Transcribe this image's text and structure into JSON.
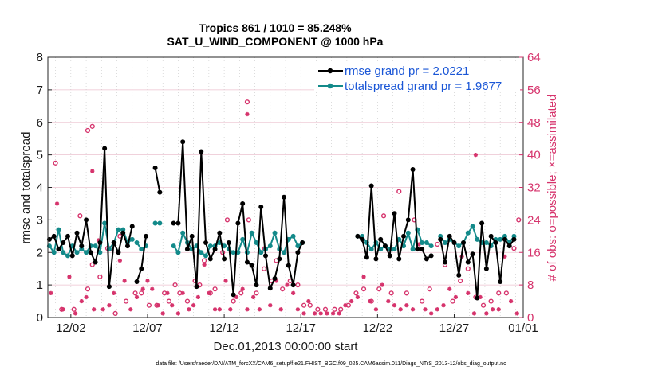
{
  "chart_data": {
    "type": "line",
    "title_line1": "Tropics 861 / 1010 = 85.248%",
    "title_line2": "SAT_U_WIND_COMPONENT @ 1000 hPa",
    "ylabel_left": "rmse and totalspread",
    "ylabel_right": "# of obs: o=possible; ×=assimilated",
    "xlabel": "Dec.01,2013 00:00:00 start",
    "footer": "data file: /Users/raeder/DAI/ATM_forcXX/CAM6_setup/f.e21.FHIST_BGC.f09_025.CAM6assim.011/Diags_NTrS_2013-12/obs_diag_output.nc",
    "xlim": [
      0.5,
      31.5
    ],
    "ylim_left": [
      0,
      8
    ],
    "ylim_right": [
      0,
      64
    ],
    "left_ticks": [
      "0",
      "1",
      "2",
      "3",
      "4",
      "5",
      "6",
      "7",
      "8"
    ],
    "right_ticks": [
      "0",
      "8",
      "16",
      "24",
      "32",
      "40",
      "48",
      "56",
      "64"
    ],
    "x_ticks": [
      {
        "day": 2,
        "label": "12/02"
      },
      {
        "day": 7,
        "label": "12/07"
      },
      {
        "day": 12,
        "label": "12/12"
      },
      {
        "day": 17,
        "label": "12/17"
      },
      {
        "day": 22,
        "label": "12/22"
      },
      {
        "day": 27,
        "label": "12/27"
      },
      {
        "day": 32,
        "label": "01/01"
      }
    ],
    "legend": [
      {
        "label": "rmse grand pr = 2.0221",
        "color": "#000000"
      },
      {
        "label": "totalspread grand pr = 1.9677",
        "color": "#138a8a"
      }
    ],
    "series": [
      {
        "name": "rmse",
        "color": "#000000",
        "x": [
          0.6,
          0.9,
          1.2,
          1.5,
          1.8,
          2.1,
          2.4,
          2.7,
          3.0,
          3.3,
          3.6,
          3.9,
          4.2,
          4.5,
          4.8,
          5.1,
          5.4,
          5.7,
          6.0,
          null,
          6.3,
          6.6,
          6.9,
          null,
          7.5,
          7.8,
          null,
          8.7,
          9.0,
          9.3,
          9.6,
          9.9,
          10.2,
          10.5,
          10.8,
          11.1,
          11.4,
          11.7,
          12.0,
          null,
          12.3,
          12.6,
          12.9,
          13.2,
          13.5,
          13.8,
          14.1,
          14.4,
          14.7,
          15.0,
          15.3,
          15.6,
          15.9,
          16.2,
          16.5,
          16.8,
          17.1,
          null,
          20.7,
          21.0,
          21.3,
          21.6,
          21.9,
          22.2,
          22.5,
          22.8,
          23.1,
          23.4,
          23.7,
          24.0,
          24.3,
          24.6,
          24.9,
          25.2,
          25.5,
          null,
          26.1,
          26.4,
          26.7,
          27.0,
          27.3,
          27.6,
          27.9,
          28.2,
          28.5,
          28.8,
          29.1,
          29.4,
          29.7,
          30.0,
          30.3,
          30.6,
          30.9
        ],
        "y": [
          2.4,
          2.5,
          2.1,
          2.3,
          2.5,
          1.9,
          2.6,
          2.2,
          3.0,
          2.0,
          1.7,
          2.3,
          5.2,
          0.95,
          2.3,
          2.0,
          2.6,
          2.2,
          2.8,
          null,
          1.1,
          1.5,
          2.5,
          null,
          4.6,
          3.85,
          null,
          2.9,
          2.9,
          5.4,
          2.1,
          2.5,
          0.95,
          5.1,
          2.3,
          1.8,
          2.1,
          2.6,
          1.8,
          null,
          2.3,
          0.7,
          2.9,
          3.5,
          1.7,
          1.6,
          1.0,
          3.4,
          1.9,
          0.9,
          1.2,
          1.8,
          3.7,
          1.6,
          1.0,
          2.0,
          2.3,
          null,
          2.5,
          2.4,
          1.85,
          4.05,
          1.8,
          2.4,
          2.2,
          1.9,
          3.2,
          1.8,
          2.5,
          3.0,
          4.55,
          2.1,
          2.1,
          1.8,
          1.9,
          null,
          2.4,
          1.7,
          2.5,
          2.3,
          1.3,
          2.3,
          1.7,
          1.95,
          0.6,
          2.9,
          1.5,
          2.5,
          2.3,
          1.1,
          2.4,
          2.2,
          2.4
        ]
      },
      {
        "name": "totalspread",
        "color": "#138a8a",
        "x": [
          0.6,
          0.9,
          1.2,
          1.5,
          1.8,
          2.1,
          2.4,
          2.7,
          3.0,
          3.3,
          3.6,
          3.9,
          4.2,
          4.5,
          4.8,
          5.1,
          5.4,
          5.7,
          6.0,
          null,
          6.3,
          6.6,
          6.9,
          null,
          7.5,
          7.8,
          null,
          8.7,
          9.0,
          9.3,
          9.6,
          9.9,
          10.2,
          10.5,
          10.8,
          11.1,
          11.4,
          11.7,
          12.0,
          null,
          12.3,
          12.6,
          12.9,
          13.2,
          13.5,
          13.8,
          14.1,
          14.4,
          14.7,
          15.0,
          15.3,
          15.6,
          15.9,
          16.2,
          16.5,
          16.8,
          17.1,
          null,
          20.7,
          21.0,
          21.3,
          21.6,
          21.9,
          22.2,
          22.5,
          22.8,
          23.1,
          23.4,
          23.7,
          24.0,
          24.3,
          24.6,
          24.9,
          25.2,
          25.5,
          null,
          26.1,
          26.4,
          26.7,
          27.0,
          27.3,
          27.6,
          27.9,
          28.2,
          28.5,
          28.8,
          29.1,
          29.4,
          29.7,
          30.0,
          30.3,
          30.6,
          30.9
        ],
        "y": [
          2.2,
          2.0,
          2.7,
          2.0,
          1.9,
          2.2,
          2.0,
          2.1,
          2.0,
          2.2,
          2.2,
          2.0,
          2.9,
          2.1,
          2.3,
          2.7,
          2.7,
          2.3,
          2.4,
          null,
          2.3,
          2.1,
          2.2,
          null,
          2.9,
          2.9,
          null,
          2.2,
          2.0,
          2.6,
          2.3,
          2.1,
          2.2,
          2.0,
          1.9,
          2.2,
          2.2,
          2.3,
          2.2,
          null,
          2.1,
          2.0,
          2.0,
          2.4,
          2.0,
          2.6,
          2.3,
          2.0,
          2.1,
          2.2,
          2.6,
          2.1,
          2.0,
          2.4,
          2.5,
          2.2,
          2.3,
          null,
          2.5,
          2.5,
          2.3,
          2.1,
          2.3,
          2.1,
          2.2,
          2.1,
          2.1,
          2.4,
          2.2,
          2.6,
          2.1,
          2.7,
          2.3,
          2.3,
          2.2,
          null,
          2.5,
          2.3,
          2.4,
          2.3,
          2.2,
          2.3,
          2.6,
          2.8,
          2.4,
          2.3,
          2.3,
          2.2,
          2.4,
          2.4,
          2.5,
          2.3,
          2.5
        ]
      }
    ],
    "obs_possible": {
      "x": [
        1.0,
        1.4,
        2.2,
        2.6,
        3.1,
        3.4,
        3.9,
        4.4,
        4.9,
        5.2,
        5.6,
        6.2,
        6.6,
        7.1,
        7.6,
        8.1,
        8.4,
        8.8,
        9.1,
        9.6,
        10.1,
        10.4,
        10.7,
        11.1,
        11.4,
        11.9,
        12.2,
        12.6,
        13.1,
        13.6,
        14.1,
        14.6,
        15.1,
        15.4,
        15.8,
        16.3,
        16.8,
        17.2,
        17.6,
        18.1,
        18.6,
        19.2,
        19.6,
        20.1,
        20.6,
        21.1,
        21.6,
        22.1,
        22.4,
        22.9,
        23.4,
        23.9,
        24.4,
        24.9,
        25.4,
        25.9,
        26.4,
        26.9,
        27.4,
        27.9,
        28.4,
        28.9,
        29.4,
        29.9,
        30.4,
        30.9,
        31.2,
        13.5,
        3.1,
        3.4,
        4.6
      ],
      "y": [
        38,
        2,
        2,
        25,
        7,
        13,
        10,
        17,
        1,
        20,
        4,
        6,
        6,
        3,
        3,
        6,
        4,
        8,
        6,
        4,
        9,
        8,
        14,
        6,
        7,
        16,
        24,
        4,
        6,
        24,
        6,
        12,
        9,
        14,
        7,
        9,
        8,
        3,
        3,
        2,
        2,
        2,
        2,
        3,
        6,
        7,
        4,
        7,
        25,
        6,
        31,
        6,
        24,
        4,
        7,
        18,
        13,
        4,
        9,
        12,
        5,
        3,
        4,
        6,
        6,
        17,
        24,
        53,
        46,
        47,
        17
      ]
    },
    "obs_assimilated": {
      "x": [
        0.7,
        1.1,
        1.5,
        1.9,
        2.3,
        2.7,
        3.0,
        3.5,
        3.8,
        4.1,
        4.5,
        4.8,
        5.2,
        5.5,
        5.9,
        6.3,
        6.7,
        7.0,
        7.3,
        7.7,
        8.0,
        8.3,
        8.6,
        9.0,
        9.3,
        9.7,
        10.0,
        10.3,
        10.7,
        11.0,
        11.4,
        11.7,
        12.1,
        12.4,
        12.8,
        13.2,
        13.5,
        13.9,
        14.3,
        14.6,
        15.0,
        15.4,
        15.7,
        16.1,
        16.5,
        16.8,
        17.2,
        17.5,
        17.9,
        18.3,
        18.7,
        19.1,
        19.5,
        19.9,
        20.3,
        20.7,
        21.1,
        21.5,
        21.9,
        22.3,
        22.7,
        23.1,
        23.5,
        23.9,
        24.3,
        24.7,
        25.1,
        25.5,
        25.9,
        26.3,
        26.7,
        27.1,
        27.5,
        27.9,
        28.3,
        28.7,
        29.1,
        29.5,
        29.9,
        30.3,
        30.7,
        31.1,
        28.4,
        13.5,
        3.4
      ],
      "y": [
        6,
        28,
        2,
        10,
        1,
        4,
        5,
        2,
        19,
        2,
        3,
        6,
        14,
        9,
        2,
        5,
        7,
        9,
        7,
        3,
        1,
        6,
        3,
        1,
        6,
        2,
        3,
        5,
        13,
        6,
        2,
        2,
        9,
        2,
        5,
        7,
        2,
        5,
        2,
        17,
        3,
        9,
        2,
        8,
        6,
        2,
        1,
        4,
        1,
        1,
        1,
        1,
        1,
        3,
        4,
        5,
        10,
        4,
        2,
        8,
        4,
        3,
        2,
        3,
        2,
        18,
        2,
        1,
        2,
        3,
        7,
        5,
        15,
        6,
        1,
        5,
        1,
        2,
        2,
        15,
        4,
        1,
        40,
        50,
        36
      ]
    }
  }
}
